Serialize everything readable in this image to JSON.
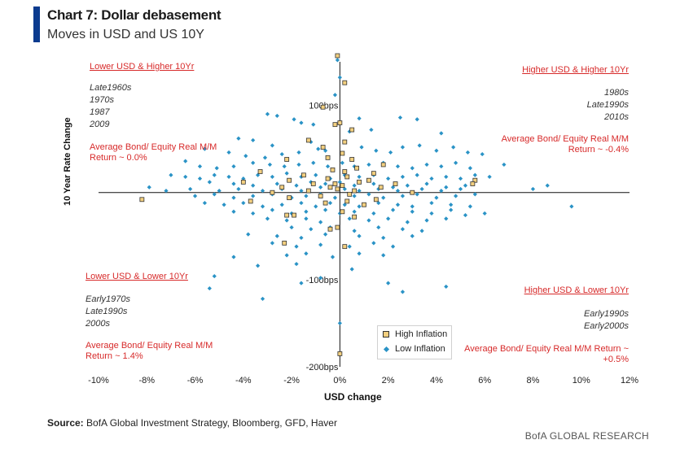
{
  "header": {
    "title": "Chart 7: Dollar debasement",
    "subtitle": "Moves in USD and US 10Y"
  },
  "colors": {
    "accent": "#0b3b8f",
    "low_inflation": "#2a93c6",
    "high_inflation_fill": "#f2cf7f",
    "annotation_red": "#d72a2a"
  },
  "quadrants": {
    "top_left": {
      "heading": "Lower USD & Higher 10Yr",
      "periods": [
        "Late1960s",
        "1970s",
        "1987",
        "2009"
      ],
      "return_line1": "Average Bond/ Equity Real M/M",
      "return_line2": "Return ~ 0.0%"
    },
    "top_right": {
      "heading": "Higher USD & Higher 10Yr",
      "periods": [
        "1980s",
        "Late1990s",
        "2010s"
      ],
      "return_line1": "Average Bond/ Equity Real M/M",
      "return_line2": "Return ~ -0.4%"
    },
    "bottom_left": {
      "heading": "Lower USD & Lower 10Yr",
      "periods": [
        "Early1970s",
        "Late1990s",
        "2000s"
      ],
      "return_line1": "Average Bond/ Equity Real M/M",
      "return_line2": "Return ~ 1.4%"
    },
    "bottom_right": {
      "heading": "Higher USD & Lower 10Yr",
      "periods": [
        "Early1990s",
        "Early2000s"
      ],
      "return_line1": "Average Bond/ Equity Real M/M Return ~",
      "return_line2": "+0.5%"
    }
  },
  "legend": {
    "high": "High Inflation",
    "low": "Low Inflation"
  },
  "footer": {
    "source_label": "Source:",
    "source_text": "BofA Global Investment Strategy, Bloomberg, GFD, Haver",
    "brand": "BofA GLOBAL RESEARCH"
  },
  "chart_data": {
    "type": "scatter",
    "title": "Chart 7: Dollar debasement",
    "subtitle": "Moves in USD and US 10Y",
    "xlabel": "USD change",
    "ylabel": "10 Year Rate Change",
    "xlim": [
      -10,
      12
    ],
    "ylim": [
      -200,
      150
    ],
    "x_ticks": [
      -10,
      -8,
      -6,
      -4,
      -2,
      0,
      2,
      4,
      6,
      8,
      10,
      12
    ],
    "x_tick_labels": [
      "-10%",
      "-8%",
      "-6%",
      "-4%",
      "-2%",
      "0%",
      "2%",
      "4%",
      "6%",
      "8%",
      "10%",
      "12%"
    ],
    "y_ticks": [
      100,
      -100,
      -200
    ],
    "y_tick_labels": [
      "100bps",
      "-100bps",
      "-200bps"
    ],
    "grid": false,
    "legend_position": "bottom-center",
    "series": [
      {
        "name": "High Inflation",
        "marker": "square",
        "points": [
          [
            -0.1,
            157
          ],
          [
            0.2,
            126
          ],
          [
            -0.7,
            98
          ],
          [
            0,
            80
          ],
          [
            0.5,
            72
          ],
          [
            -0.2,
            78
          ],
          [
            -1.3,
            60
          ],
          [
            0.2,
            58
          ],
          [
            -0.7,
            52
          ],
          [
            0.1,
            45
          ],
          [
            -0.5,
            40
          ],
          [
            0.5,
            38
          ],
          [
            -2.2,
            38
          ],
          [
            1.8,
            32
          ],
          [
            0.7,
            28
          ],
          [
            -0.3,
            26
          ],
          [
            0.2,
            24
          ],
          [
            1.4,
            22
          ],
          [
            -3.3,
            24
          ],
          [
            -1.5,
            20
          ],
          [
            0.3,
            18
          ],
          [
            -0.5,
            16
          ],
          [
            -2.1,
            14
          ],
          [
            1.2,
            14
          ],
          [
            -4.0,
            12
          ],
          [
            -0.2,
            10
          ],
          [
            0.8,
            12
          ],
          [
            -1.1,
            10
          ],
          [
            2.3,
            10
          ],
          [
            0.1,
            8
          ],
          [
            -0.4,
            6
          ],
          [
            -2.4,
            6
          ],
          [
            1.7,
            6
          ],
          [
            5.6,
            14
          ],
          [
            5.5,
            10
          ],
          [
            -0.1,
            4
          ],
          [
            0.6,
            2
          ],
          [
            -1.3,
            2
          ],
          [
            3,
            0
          ],
          [
            -2.8,
            0
          ],
          [
            0.4,
            -2
          ],
          [
            -0.8,
            -4
          ],
          [
            1.5,
            -8
          ],
          [
            -2.1,
            -6
          ],
          [
            0.3,
            -10
          ],
          [
            -3.7,
            -10
          ],
          [
            -0.6,
            -12
          ],
          [
            1,
            -14
          ],
          [
            -2.2,
            -26
          ],
          [
            0.1,
            -22
          ],
          [
            -1.9,
            -26
          ],
          [
            0.6,
            -28
          ],
          [
            -0.4,
            -42
          ],
          [
            -2.3,
            -58
          ],
          [
            -0.1,
            -40
          ],
          [
            0.2,
            -62
          ],
          [
            -8.2,
            -8
          ],
          [
            0,
            -185
          ]
        ]
      },
      {
        "name": "Low Inflation",
        "marker": "diamond",
        "points": [
          [
            -0.1,
            152
          ],
          [
            0,
            132
          ],
          [
            -0.2,
            112
          ],
          [
            -3.0,
            90
          ],
          [
            -2.6,
            88
          ],
          [
            -1.9,
            84
          ],
          [
            -1.6,
            80
          ],
          [
            -1.1,
            78
          ],
          [
            0.8,
            85
          ],
          [
            1.3,
            72
          ],
          [
            2.5,
            86
          ],
          [
            3.2,
            84
          ],
          [
            4.2,
            68
          ],
          [
            -4.2,
            62
          ],
          [
            -3.6,
            60
          ],
          [
            -2.8,
            54
          ],
          [
            -1.2,
            58
          ],
          [
            0.4,
            70
          ],
          [
            -5.6,
            50
          ],
          [
            -4.6,
            46
          ],
          [
            -3.9,
            42
          ],
          [
            -3.1,
            40
          ],
          [
            -2.4,
            44
          ],
          [
            -1.7,
            46
          ],
          [
            -0.9,
            50
          ],
          [
            -0.6,
            48
          ],
          [
            0.9,
            52
          ],
          [
            1.5,
            48
          ],
          [
            2.1,
            46
          ],
          [
            2.6,
            52
          ],
          [
            3.3,
            54
          ],
          [
            4,
            48
          ],
          [
            4.7,
            52
          ],
          [
            5.3,
            46
          ],
          [
            5.9,
            44
          ],
          [
            -6.4,
            36
          ],
          [
            -5.8,
            30
          ],
          [
            -5.1,
            28
          ],
          [
            -4.4,
            30
          ],
          [
            -3.6,
            34
          ],
          [
            -2.9,
            32
          ],
          [
            -2.3,
            30
          ],
          [
            -1.7,
            32
          ],
          [
            -1.1,
            34
          ],
          [
            -0.5,
            30
          ],
          [
            0.1,
            34
          ],
          [
            0.6,
            30
          ],
          [
            1.2,
            32
          ],
          [
            1.8,
            34
          ],
          [
            2.4,
            30
          ],
          [
            3,
            28
          ],
          [
            3.6,
            32
          ],
          [
            4.2,
            30
          ],
          [
            4.8,
            34
          ],
          [
            5.4,
            28
          ],
          [
            6.8,
            32
          ],
          [
            -7.0,
            20
          ],
          [
            -6.4,
            18
          ],
          [
            -5.8,
            16
          ],
          [
            -5.2,
            20
          ],
          [
            -4.6,
            18
          ],
          [
            -4.0,
            16
          ],
          [
            -3.4,
            20
          ],
          [
            -2.8,
            18
          ],
          [
            -2.2,
            22
          ],
          [
            -1.6,
            18
          ],
          [
            -1.0,
            20
          ],
          [
            -0.4,
            16
          ],
          [
            0.2,
            20
          ],
          [
            0.8,
            18
          ],
          [
            1.4,
            20
          ],
          [
            2,
            16
          ],
          [
            2.6,
            18
          ],
          [
            3.2,
            20
          ],
          [
            3.8,
            16
          ],
          [
            4.4,
            18
          ],
          [
            5,
            16
          ],
          [
            5.6,
            20
          ],
          [
            6.2,
            18
          ],
          [
            -5.4,
            12
          ],
          [
            -4.4,
            10
          ],
          [
            -3.6,
            8
          ],
          [
            -2.6,
            10
          ],
          [
            -1.8,
            8
          ],
          [
            -1.2,
            12
          ],
          [
            -0.6,
            10
          ],
          [
            0,
            12
          ],
          [
            0.6,
            8
          ],
          [
            1.4,
            10
          ],
          [
            2.2,
            6
          ],
          [
            2.8,
            8
          ],
          [
            3.6,
            10
          ],
          [
            4.4,
            6
          ],
          [
            5.2,
            8
          ],
          [
            -7.9,
            6
          ],
          [
            -7.2,
            2
          ],
          [
            -6.2,
            4
          ],
          [
            -5.0,
            2
          ],
          [
            -4.2,
            4
          ],
          [
            -3.2,
            2
          ],
          [
            -2.4,
            4
          ],
          [
            -1.6,
            2
          ],
          [
            -0.8,
            6
          ],
          [
            0.2,
            4
          ],
          [
            0.8,
            2
          ],
          [
            1.6,
            4
          ],
          [
            2.4,
            2
          ],
          [
            3.4,
            4
          ],
          [
            4.2,
            2
          ],
          [
            5,
            4
          ],
          [
            8.0,
            4
          ],
          [
            8.6,
            8
          ],
          [
            -6.0,
            -4
          ],
          [
            -5.2,
            -2
          ],
          [
            -4.4,
            -6
          ],
          [
            -3.6,
            -4
          ],
          [
            -2.8,
            -2
          ],
          [
            -2.0,
            -6
          ],
          [
            -1.4,
            -4
          ],
          [
            -0.8,
            -2
          ],
          [
            -0.2,
            -6
          ],
          [
            0.6,
            -4
          ],
          [
            1.2,
            -2
          ],
          [
            1.8,
            -6
          ],
          [
            2.6,
            -4
          ],
          [
            3.2,
            -2
          ],
          [
            4,
            -6
          ],
          [
            4.8,
            -4
          ],
          [
            5.6,
            -2
          ],
          [
            -5.6,
            -12
          ],
          [
            -4.8,
            -14
          ],
          [
            -4.0,
            -12
          ],
          [
            -3.2,
            -16
          ],
          [
            -2.4,
            -14
          ],
          [
            -1.6,
            -12
          ],
          [
            -1.0,
            -16
          ],
          [
            -0.4,
            -12
          ],
          [
            0.2,
            -14
          ],
          [
            0.8,
            -16
          ],
          [
            1.6,
            -12
          ],
          [
            2.4,
            -14
          ],
          [
            3,
            -16
          ],
          [
            3.8,
            -12
          ],
          [
            4.6,
            -14
          ],
          [
            5.4,
            -16
          ],
          [
            9.6,
            -16
          ],
          [
            -4.4,
            -22
          ],
          [
            -3.6,
            -24
          ],
          [
            -2.8,
            -20
          ],
          [
            -2.0,
            -24
          ],
          [
            -1.4,
            -22
          ],
          [
            -0.6,
            -20
          ],
          [
            0,
            -24
          ],
          [
            0.6,
            -22
          ],
          [
            1.4,
            -24
          ],
          [
            2.2,
            -20
          ],
          [
            3,
            -22
          ],
          [
            3.8,
            -24
          ],
          [
            4.6,
            -20
          ],
          [
            5.2,
            -26
          ],
          [
            6,
            -24
          ],
          [
            -3.0,
            -30
          ],
          [
            -2.2,
            -32
          ],
          [
            -1.4,
            -30
          ],
          [
            -0.8,
            -34
          ],
          [
            0.4,
            -30
          ],
          [
            1.2,
            -32
          ],
          [
            2,
            -30
          ],
          [
            2.8,
            -34
          ],
          [
            3.6,
            -32
          ],
          [
            4.4,
            -30
          ],
          [
            -2.0,
            -40
          ],
          [
            -1.2,
            -42
          ],
          [
            -0.4,
            -40
          ],
          [
            0.6,
            -44
          ],
          [
            1.6,
            -40
          ],
          [
            2.6,
            -42
          ],
          [
            3.4,
            -44
          ],
          [
            -3.8,
            -48
          ],
          [
            -2.6,
            -50
          ],
          [
            -1.6,
            -52
          ],
          [
            -0.6,
            -48
          ],
          [
            0.8,
            -50
          ],
          [
            1.8,
            -52
          ],
          [
            3,
            -50
          ],
          [
            -2.8,
            -58
          ],
          [
            -1.8,
            -62
          ],
          [
            -0.8,
            -60
          ],
          [
            0.4,
            -62
          ],
          [
            1.4,
            -58
          ],
          [
            2.2,
            -62
          ],
          [
            -4.4,
            -74
          ],
          [
            -2.2,
            -72
          ],
          [
            -1.4,
            -70
          ],
          [
            -0.3,
            -74
          ],
          [
            0.8,
            -70
          ],
          [
            1.8,
            -72
          ],
          [
            -3.4,
            -84
          ],
          [
            -1.8,
            -82
          ],
          [
            0.5,
            -88
          ],
          [
            -5.2,
            -96
          ],
          [
            -0.8,
            -98
          ],
          [
            -5.4,
            -110
          ],
          [
            -1.6,
            -104
          ],
          [
            2.0,
            -104
          ],
          [
            -3.2,
            -122
          ],
          [
            2.6,
            -114
          ],
          [
            4.4,
            -108
          ],
          [
            0,
            -150
          ]
        ]
      }
    ]
  }
}
